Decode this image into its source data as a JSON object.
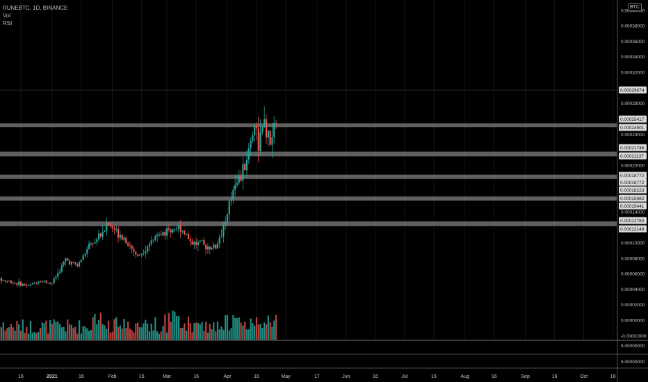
{
  "legend": {
    "symbol": "RUNEBTC, 1D, BINANCE",
    "vol": "Vol",
    "rsi": "RSI"
  },
  "currency_badge": "BTC",
  "rsi_axis": {
    "labels": [
      "5.00000000",
      "5.00000000"
    ]
  },
  "colors": {
    "up": "#26a69a",
    "down": "#ef5350",
    "vol_up": "#1f8f85",
    "vol_down": "#b8433f",
    "zone": "#808080",
    "background": "#000000",
    "grid": "#202020"
  },
  "chart_data": {
    "type": "candlestick",
    "y_axis": {
      "ticks": [
        "0.00040000",
        "0.00038000",
        "0.00036000",
        "0.00034000",
        "0.00032000",
        "0.00028000",
        "0.00024000",
        "0.00020000",
        "0.00014000",
        "0.00010000",
        "0.00008000",
        "0.00006000",
        "0.00004000",
        "0.00002000",
        "0.00000000",
        "-0.00002000"
      ],
      "tick_values": [
        0.0004,
        0.00038,
        0.00036,
        0.00034,
        0.00032,
        0.00028,
        0.00024,
        0.0002,
        0.00014,
        0.0001,
        8e-05,
        6e-05,
        4e-05,
        2e-05,
        0,
        -2e-05
      ],
      "range": [
        -2e-05,
        0.0004
      ]
    },
    "x_axis": {
      "ticks": [
        "16",
        "2021",
        "16",
        "Feb",
        "16",
        "Mar",
        "16",
        "Apr",
        "16",
        "May",
        "17",
        "Jun",
        "16",
        "Jul",
        "16",
        "Aug",
        "16",
        "Sep",
        "16",
        "Oct",
        "16"
      ],
      "tick_dates": [
        "2020-12-16",
        "2021-01-01",
        "2021-01-16",
        "2021-02-01",
        "2021-02-16",
        "2021-03-01",
        "2021-03-16",
        "2021-04-01",
        "2021-04-16",
        "2021-05-01",
        "2021-05-17",
        "2021-06-01",
        "2021-06-16",
        "2021-07-01",
        "2021-07-16",
        "2021-08-01",
        "2021-08-16",
        "2021-09-01",
        "2021-09-16",
        "2021-10-01",
        "2021-10-16"
      ]
    },
    "price_labels": [
      "0.00029674",
      "0.00025417",
      "0.00024901",
      "0.00021746",
      "0.00021137",
      "0.00018772",
      "0.00018772",
      "0.00018223",
      "0.00015982",
      "0.00015441",
      "0.00012760",
      "0.00012148"
    ],
    "price_label_values": [
      0.00029674,
      0.00025417,
      0.00024901,
      0.00021746,
      0.00021137,
      0.00018772,
      0.00018772,
      0.00018223,
      0.00015982,
      0.00015441,
      0.0001276,
      0.00012148
    ],
    "zones": [
      {
        "from": 0.00024901,
        "to": 0.00025417
      },
      {
        "from": 0.00021137,
        "to": 0.00021746
      },
      {
        "from": 0.00018223,
        "to": 0.00018772
      },
      {
        "from": 0.00015441,
        "to": 0.00015982
      },
      {
        "from": 0.00012148,
        "to": 0.0001276
      }
    ],
    "last_high": 0.00029674,
    "anchors": [
      {
        "date": "2020-11-30",
        "close": 5.5e-05
      },
      {
        "date": "2020-12-10",
        "close": 5e-05
      },
      {
        "date": "2020-12-20",
        "close": 4.4e-05
      },
      {
        "date": "2020-12-25",
        "close": 5.1e-05
      },
      {
        "date": "2021-01-01",
        "close": 4.8e-05
      },
      {
        "date": "2021-01-08",
        "close": 7.8e-05
      },
      {
        "date": "2021-01-14",
        "close": 7e-05
      },
      {
        "date": "2021-01-20",
        "close": 9.5e-05
      },
      {
        "date": "2021-01-30",
        "close": 0.000123
      },
      {
        "date": "2021-02-06",
        "close": 0.00011
      },
      {
        "date": "2021-02-14",
        "close": 8.2e-05
      },
      {
        "date": "2021-02-22",
        "close": 0.000105
      },
      {
        "date": "2021-03-02",
        "close": 0.000117
      },
      {
        "date": "2021-03-08",
        "close": 0.00012
      },
      {
        "date": "2021-03-14",
        "close": 0.0001
      },
      {
        "date": "2021-03-20",
        "close": 9.6e-05
      },
      {
        "date": "2021-03-26",
        "close": 9.4e-05
      },
      {
        "date": "2021-04-01",
        "close": 0.000135
      },
      {
        "date": "2021-04-05",
        "close": 0.000182
      },
      {
        "date": "2021-04-08",
        "close": 0.000185
      },
      {
        "date": "2021-04-12",
        "close": 0.00022
      },
      {
        "date": "2021-04-15",
        "close": 0.000255
      },
      {
        "date": "2021-04-17",
        "close": 0.00023
      },
      {
        "date": "2021-04-20",
        "close": 0.00025
      },
      {
        "date": "2021-04-23",
        "close": 0.000225
      },
      {
        "date": "2021-04-26",
        "close": 0.00026
      }
    ]
  }
}
